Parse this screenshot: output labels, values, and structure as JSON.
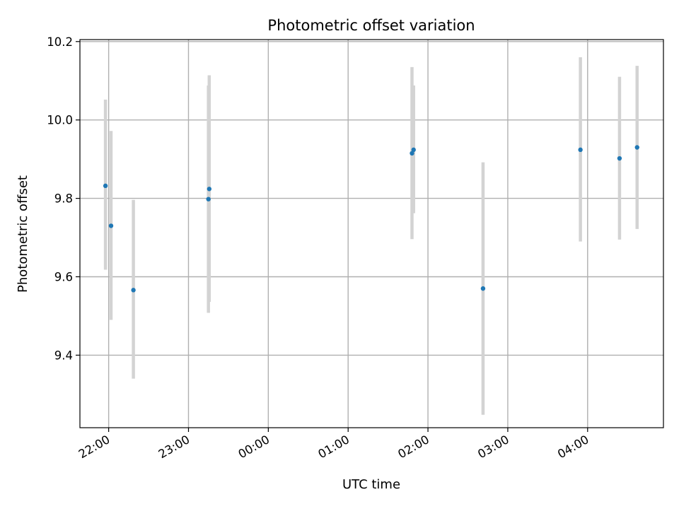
{
  "chart_data": {
    "type": "scatter",
    "title": "Photometric offset variation",
    "xlabel": "UTC time",
    "ylabel": "Photometric offset",
    "x_axis": "time",
    "x_ticks": [
      "22:00",
      "23:00",
      "00:00",
      "01:00",
      "02:00",
      "03:00",
      "04:00"
    ],
    "x_tick_hours": [
      22,
      23,
      24,
      25,
      26,
      27,
      28
    ],
    "xlim_hours": [
      21.64,
      28.95
    ],
    "ylim": [
      9.215,
      10.205
    ],
    "y_ticks": [
      9.4,
      9.6,
      9.8,
      10.0,
      10.2
    ],
    "y_tick_labels": [
      "9.4",
      "9.6",
      "9.8",
      "10.0",
      "10.2"
    ],
    "grid": true,
    "point_color": "#1f77b4",
    "errorbar_color": "#d3d3d3",
    "points": [
      {
        "time": "21:57",
        "hour": 21.96,
        "y": 9.832,
        "ylow": 9.618,
        "yhigh": 10.052
      },
      {
        "time": "22:02",
        "hour": 22.03,
        "y": 9.73,
        "ylow": 9.49,
        "yhigh": 9.972
      },
      {
        "time": "22:18",
        "hour": 22.31,
        "y": 9.566,
        "ylow": 9.34,
        "yhigh": 9.796
      },
      {
        "time": "23:15",
        "hour": 23.25,
        "y": 9.798,
        "ylow": 9.508,
        "yhigh": 10.088
      },
      {
        "time": "23:16",
        "hour": 23.26,
        "y": 9.824,
        "ylow": 9.536,
        "yhigh": 10.114
      },
      {
        "time": "01:48",
        "hour": 25.8,
        "y": 9.915,
        "ylow": 9.696,
        "yhigh": 10.135
      },
      {
        "time": "01:49",
        "hour": 25.82,
        "y": 9.924,
        "ylow": 9.762,
        "yhigh": 10.088
      },
      {
        "time": "02:41",
        "hour": 26.69,
        "y": 9.57,
        "ylow": 9.248,
        "yhigh": 9.892
      },
      {
        "time": "03:54",
        "hour": 27.91,
        "y": 9.924,
        "ylow": 9.69,
        "yhigh": 10.16
      },
      {
        "time": "04:24",
        "hour": 28.4,
        "y": 9.902,
        "ylow": 9.695,
        "yhigh": 10.11
      },
      {
        "time": "04:37",
        "hour": 28.62,
        "y": 9.93,
        "ylow": 9.722,
        "yhigh": 10.138
      }
    ]
  }
}
